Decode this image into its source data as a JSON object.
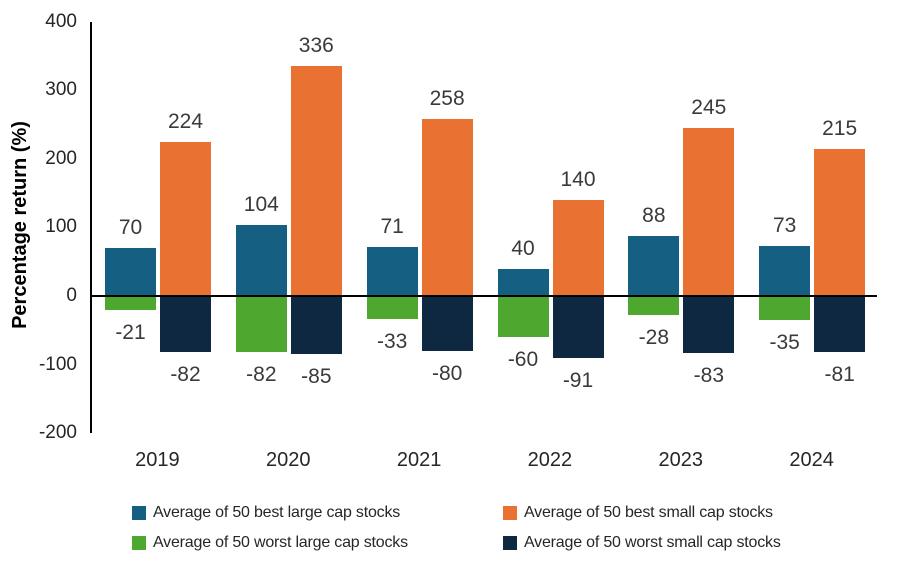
{
  "chart_data": {
    "type": "bar",
    "title": "",
    "xlabel": "",
    "ylabel": "Percentage return (%)",
    "categories": [
      "2019",
      "2020",
      "2021",
      "2022",
      "2023",
      "2024"
    ],
    "series": [
      {
        "name": "Average of 50 best large cap stocks",
        "color": "#156082",
        "values": [
          70,
          104,
          71,
          40,
          88,
          73
        ]
      },
      {
        "name": "Average of 50 best small cap stocks",
        "color": "#E97132",
        "values": [
          224,
          336,
          258,
          140,
          245,
          215
        ]
      },
      {
        "name": "Average of 50 worst large cap stocks",
        "color": "#4EA72E",
        "values": [
          -21,
          -82,
          -33,
          -60,
          -28,
          -35
        ]
      },
      {
        "name": "Average of 50 worst small cap stocks",
        "color": "#0E2841",
        "values": [
          -82,
          -85,
          -80,
          -91,
          -83,
          -81
        ]
      }
    ],
    "ylim": [
      -200,
      400
    ],
    "yticks": [
      400,
      300,
      200,
      100,
      0,
      -100,
      -200
    ],
    "grid": false,
    "data_labels": true,
    "legend_position": "bottom",
    "axis_color": "#000000",
    "tick_label_color": "#262626",
    "data_label_color": "#3A3A3A",
    "legend_text_color": "#262626"
  }
}
